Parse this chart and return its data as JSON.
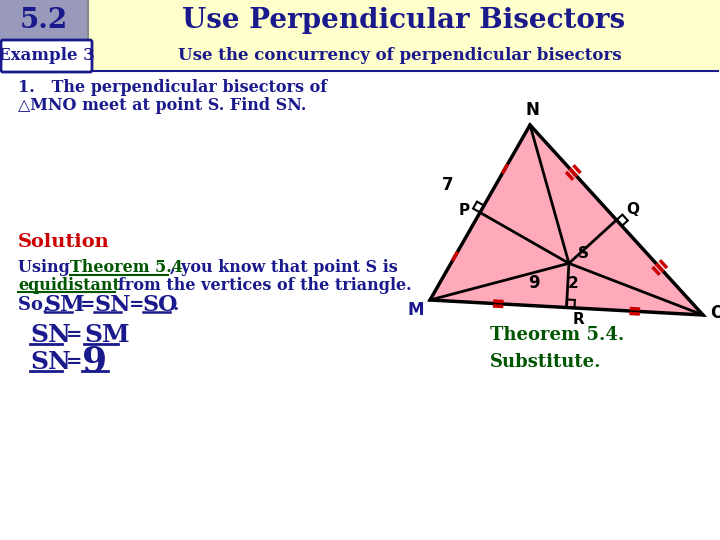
{
  "title": "Use Perpendicular Bisectors",
  "section": "5.2",
  "example_label": "Example 3",
  "example_text": "Use the concurrency of perpendicular bisectors",
  "bg_color": "#ffffcc",
  "section_bg": "#9999bb",
  "dark_blue": "#1a1a8c",
  "red": "#cc0000",
  "green": "#005500",
  "triangle_fill": "#ffaabb",
  "tri_M": [
    430,
    295
  ],
  "tri_N": [
    530,
    430
  ],
  "tri_O": [
    705,
    310
  ],
  "tick_red": "#cc0000"
}
